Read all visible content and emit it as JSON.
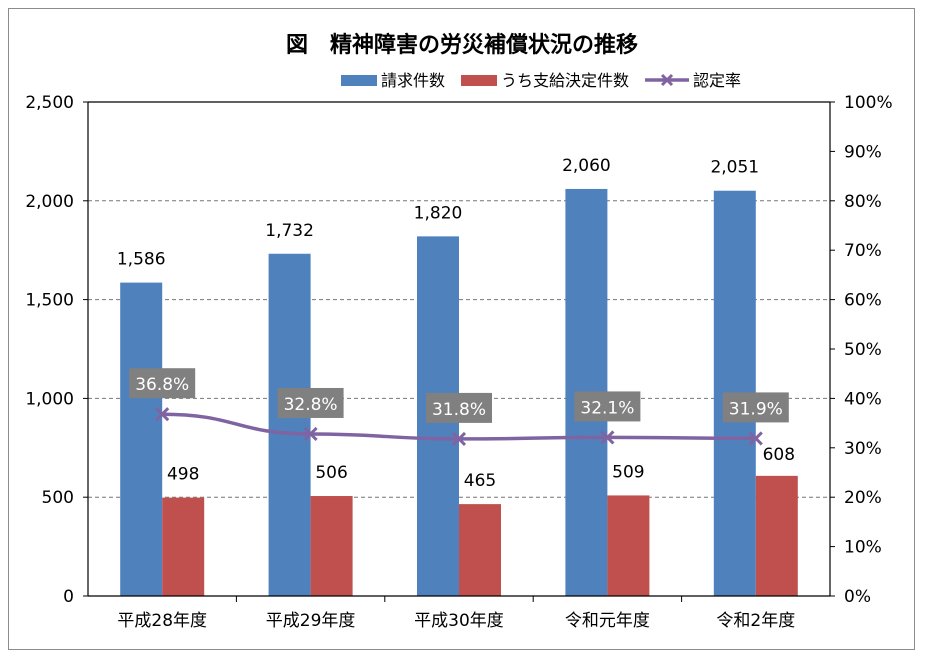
{
  "chart_data": {
    "type": "bar",
    "title": "図　精神障害の労災補償状況の推移",
    "categories": [
      "平成28年度",
      "平成29年度",
      "平成30年度",
      "令和元年度",
      "令和2年度"
    ],
    "series": [
      {
        "name": "請求件数",
        "kind": "bar",
        "color": "#4f81bd",
        "values": [
          1586,
          1732,
          1820,
          2060,
          2051
        ],
        "labels": [
          "1,586",
          "1,732",
          "1,820",
          "2,060",
          "2,051"
        ]
      },
      {
        "name": "うち支給決定件数",
        "kind": "bar",
        "color": "#c0504d",
        "values": [
          498,
          506,
          465,
          509,
          608
        ],
        "labels": [
          "498",
          "506",
          "465",
          "509",
          "608"
        ]
      },
      {
        "name": "認定率",
        "kind": "line",
        "axis": "right",
        "color": "#8064a2",
        "values": [
          36.8,
          32.8,
          31.8,
          32.1,
          31.9
        ],
        "labels": [
          "36.8%",
          "32.8%",
          "31.8%",
          "32.1%",
          "31.9%"
        ]
      }
    ],
    "y_left": {
      "min": 0,
      "max": 2500,
      "ticks": [
        0,
        500,
        1000,
        1500,
        2000,
        2500
      ],
      "tick_labels": [
        "0",
        "500",
        "1,000",
        "1,500",
        "2,000",
        "2,500"
      ]
    },
    "y_right": {
      "min": 0,
      "max": 100,
      "ticks": [
        0,
        10,
        20,
        30,
        40,
        50,
        60,
        70,
        80,
        90,
        100
      ],
      "tick_labels": [
        "0%",
        "10%",
        "20%",
        "30%",
        "40%",
        "50%",
        "60%",
        "70%",
        "80%",
        "90%",
        "100%"
      ]
    },
    "grid": "dashed-horizontal",
    "legend": "top-right",
    "rate_label_bg": "#808080"
  }
}
